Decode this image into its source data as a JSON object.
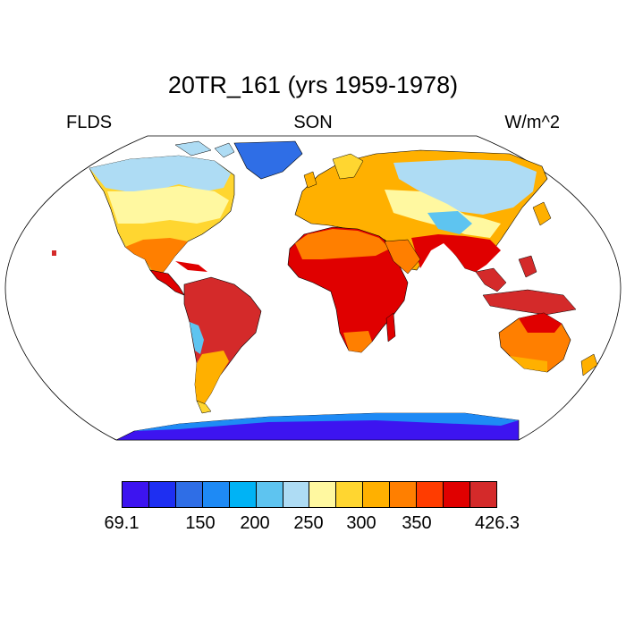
{
  "figure": {
    "title": "20TR_161 (yrs 1959-1978)",
    "left_label": "FLDS",
    "center_label": "SON",
    "right_label": "W/m^2"
  },
  "projection": "Robinson",
  "colorbar": {
    "colors": [
      "#3d14f0",
      "#1e2ff2",
      "#2f6ee6",
      "#1e8af5",
      "#00b3f5",
      "#5ec4f0",
      "#aedcf4",
      "#fff8a0",
      "#ffd630",
      "#ffb000",
      "#ff7f00",
      "#ff3c00",
      "#e00000",
      "#d42a2a"
    ],
    "labels": [
      {
        "text": "69.1",
        "index": 0
      },
      {
        "text": "150",
        "index": 2
      },
      {
        "text": "200",
        "index": 3
      },
      {
        "text": "250",
        "index": 4
      },
      {
        "text": "300",
        "index": 5
      },
      {
        "text": "350",
        "index": 6
      },
      {
        "text": "426.3",
        "index": 7
      }
    ]
  }
}
